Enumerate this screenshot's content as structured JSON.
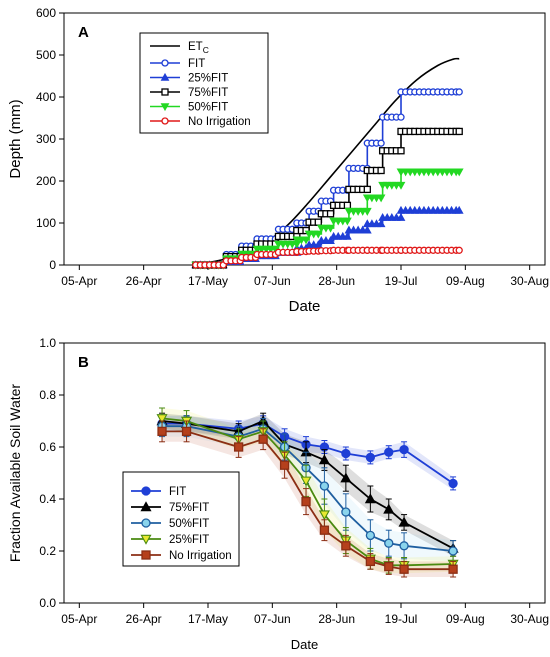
{
  "chart_data": [
    {
      "type": "line",
      "panel_label": "A",
      "xlabel": "Date",
      "ylabel": "Depth (mm)",
      "x_ticks": [
        "05-Apr",
        "26-Apr",
        "17-May",
        "07-Jun",
        "28-Jun",
        "19-Jul",
        "09-Aug",
        "30-Aug"
      ],
      "ylim": [
        0,
        600
      ],
      "y_ticks": [
        "0",
        "100",
        "200",
        "300",
        "400",
        "500",
        "600"
      ],
      "legend_position": "top-left",
      "etc_label": {
        "base": "ET",
        "sub": "C"
      },
      "series": [
        {
          "name": "FIT",
          "color": "#1f3fd6",
          "marker": "circle-open",
          "steps": [
            [
              "13-May",
              0
            ],
            [
              "23-May",
              25
            ],
            [
              "28-May",
              45
            ],
            [
              "02-Jun",
              62
            ],
            [
              "09-Jun",
              85
            ],
            [
              "15-Jun",
              100
            ],
            [
              "19-Jun",
              128
            ],
            [
              "23-Jun",
              152
            ],
            [
              "27-Jun",
              178
            ],
            [
              "02-Jul",
              230
            ],
            [
              "08-Jul",
              290
            ],
            [
              "13-Jul",
              352
            ],
            [
              "19-Jul",
              412
            ],
            [
              "07-Aug",
              412
            ]
          ]
        },
        {
          "name": "25%FIT",
          "color": "#1f3fd6",
          "marker": "triangle-up",
          "steps": [
            [
              "13-May",
              0
            ],
            [
              "23-May",
              8
            ],
            [
              "28-May",
              15
            ],
            [
              "02-Jun",
              22
            ],
            [
              "09-Jun",
              30
            ],
            [
              "15-Jun",
              40
            ],
            [
              "19-Jun",
              48
            ],
            [
              "23-Jun",
              58
            ],
            [
              "27-Jun",
              68
            ],
            [
              "02-Jul",
              83
            ],
            [
              "08-Jul",
              98
            ],
            [
              "13-Jul",
              113
            ],
            [
              "19-Jul",
              130
            ],
            [
              "07-Aug",
              130
            ]
          ]
        },
        {
          "name": "75%FIT",
          "color": "#000000",
          "marker": "square-open",
          "steps": [
            [
              "13-May",
              0
            ],
            [
              "23-May",
              20
            ],
            [
              "28-May",
              35
            ],
            [
              "02-Jun",
              50
            ],
            [
              "09-Jun",
              68
            ],
            [
              "15-Jun",
              82
            ],
            [
              "19-Jun",
              102
            ],
            [
              "23-Jun",
              122
            ],
            [
              "27-Jun",
              142
            ],
            [
              "02-Jul",
              180
            ],
            [
              "08-Jul",
              225
            ],
            [
              "13-Jul",
              272
            ],
            [
              "19-Jul",
              318
            ],
            [
              "07-Aug",
              318
            ]
          ]
        },
        {
          "name": "50%FIT",
          "color": "#22d822",
          "marker": "triangle-down",
          "steps": [
            [
              "13-May",
              0
            ],
            [
              "23-May",
              15
            ],
            [
              "28-May",
              26
            ],
            [
              "02-Jun",
              38
            ],
            [
              "09-Jun",
              50
            ],
            [
              "15-Jun",
              60
            ],
            [
              "19-Jun",
              74
            ],
            [
              "23-Jun",
              88
            ],
            [
              "27-Jun",
              105
            ],
            [
              "02-Jul",
              128
            ],
            [
              "08-Jul",
              160
            ],
            [
              "13-Jul",
              190
            ],
            [
              "19-Jul",
              222
            ],
            [
              "07-Aug",
              222
            ]
          ]
        },
        {
          "name": "No Irrigation",
          "color": "#e01818",
          "marker": "circle-open",
          "steps": [
            [
              "13-May",
              0
            ],
            [
              "23-May",
              10
            ],
            [
              "28-May",
              18
            ],
            [
              "02-Jun",
              25
            ],
            [
              "09-Jun",
              30
            ],
            [
              "15-Jun",
              32
            ],
            [
              "19-Jun",
              33
            ],
            [
              "23-Jun",
              34
            ],
            [
              "27-Jun",
              35
            ],
            [
              "02-Jul",
              35
            ],
            [
              "08-Jul",
              35
            ],
            [
              "13-Jul",
              35
            ],
            [
              "19-Jul",
              35
            ],
            [
              "07-Aug",
              35
            ]
          ]
        }
      ],
      "etc_curve": [
        [
          "13-May",
          0
        ],
        [
          "27-May",
          22
        ],
        [
          "05-Jun",
          55
        ],
        [
          "12-Jun",
          95
        ],
        [
          "19-Jun",
          150
        ],
        [
          "26-Jun",
          210
        ],
        [
          "03-Jul",
          270
        ],
        [
          "10-Jul",
          330
        ],
        [
          "17-Jul",
          390
        ],
        [
          "24-Jul",
          440
        ],
        [
          "31-Jul",
          475
        ],
        [
          "05-Aug",
          490
        ],
        [
          "07-Aug",
          491
        ]
      ]
    },
    {
      "type": "line",
      "panel_label": "B",
      "xlabel": "Date",
      "ylabel": "Fraction Available Soil Water",
      "x_ticks": [
        "05-Apr",
        "26-Apr",
        "17-May",
        "07-Jun",
        "28-Jun",
        "19-Jul",
        "09-Aug",
        "30-Aug"
      ],
      "ylim": [
        0.0,
        1.0
      ],
      "y_ticks": [
        "0.0",
        "0.2",
        "0.4",
        "0.6",
        "0.8",
        "1.0"
      ],
      "legend_position": "bottom-left",
      "x_dates": [
        "02-May",
        "10-May",
        "27-May",
        "04-Jun",
        "11-Jun",
        "18-Jun",
        "24-Jun",
        "01-Jul",
        "09-Jul",
        "15-Jul",
        "20-Jul",
        "05-Aug"
      ],
      "series": [
        {
          "name": "FIT",
          "color": "#1f3fd6",
          "fill": "#1f3fd6",
          "marker": "circle",
          "values": [
            0.69,
            0.69,
            0.67,
            0.69,
            0.64,
            0.61,
            0.6,
            0.575,
            0.56,
            0.58,
            0.59,
            0.46
          ],
          "errors": [
            0.03,
            0.03,
            0.03,
            0.03,
            0.03,
            0.03,
            0.025,
            0.025,
            0.025,
            0.025,
            0.03,
            0.025
          ]
        },
        {
          "name": "75%FIT",
          "color": "#000000",
          "fill": "#000000",
          "marker": "triangle-up",
          "values": [
            0.7,
            0.69,
            0.66,
            0.7,
            0.61,
            0.58,
            0.55,
            0.48,
            0.4,
            0.36,
            0.31,
            0.21
          ],
          "errors": [
            0.03,
            0.03,
            0.03,
            0.03,
            0.04,
            0.04,
            0.04,
            0.05,
            0.05,
            0.04,
            0.03,
            0.03
          ]
        },
        {
          "name": "50%FIT",
          "color": "#1f5fa0",
          "fill": "#8ad4ec",
          "marker": "circle",
          "values": [
            0.68,
            0.68,
            0.64,
            0.67,
            0.6,
            0.52,
            0.45,
            0.35,
            0.26,
            0.23,
            0.22,
            0.2
          ],
          "errors": [
            0.04,
            0.04,
            0.04,
            0.04,
            0.05,
            0.06,
            0.07,
            0.07,
            0.06,
            0.05,
            0.05,
            0.04
          ]
        },
        {
          "name": "25%FIT",
          "color": "#4a8a10",
          "fill": "#e8e830",
          "marker": "triangle-down",
          "values": [
            0.71,
            0.7,
            0.63,
            0.66,
            0.57,
            0.47,
            0.34,
            0.24,
            0.17,
            0.145,
            0.145,
            0.15
          ],
          "errors": [
            0.04,
            0.04,
            0.04,
            0.04,
            0.05,
            0.06,
            0.06,
            0.05,
            0.04,
            0.03,
            0.03,
            0.03
          ]
        },
        {
          "name": "No Irrigation",
          "color": "#8b2e14",
          "fill": "#b5401c",
          "marker": "square",
          "values": [
            0.66,
            0.66,
            0.6,
            0.63,
            0.53,
            0.39,
            0.28,
            0.22,
            0.16,
            0.14,
            0.13,
            0.13
          ],
          "errors": [
            0.04,
            0.04,
            0.04,
            0.04,
            0.05,
            0.05,
            0.04,
            0.04,
            0.03,
            0.03,
            0.03,
            0.03
          ]
        }
      ]
    }
  ]
}
